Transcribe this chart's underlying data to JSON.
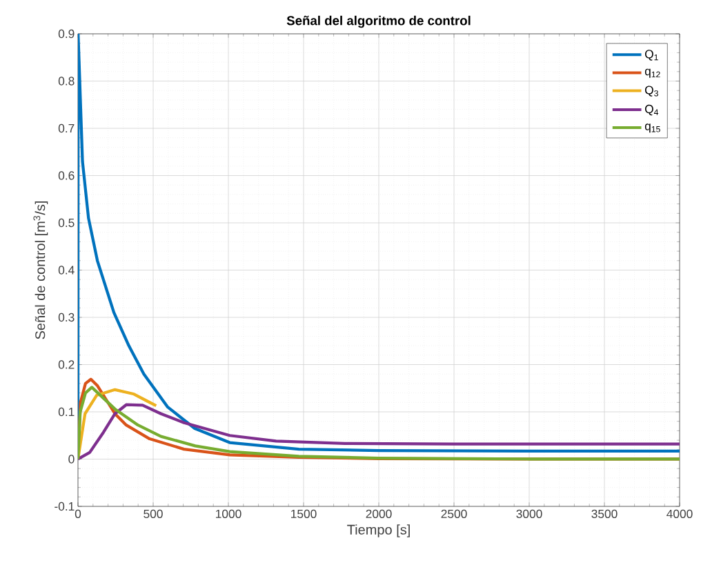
{
  "chart_data": {
    "type": "line",
    "title": "Señal del algoritmo de control",
    "xlabel": "Tiempo [s]",
    "ylabel": "Señal de control [m$^{3}$/s]",
    "xlim": [
      0,
      4000
    ],
    "ylim": [
      -0.1,
      0.9
    ],
    "xticks": [
      0,
      500,
      1000,
      1500,
      2000,
      2500,
      3000,
      3500,
      4000
    ],
    "yticks": [
      -0.1,
      0,
      0.1,
      0.2,
      0.3,
      0.4,
      0.5,
      0.6,
      0.7,
      0.8,
      0.9
    ],
    "grid": true,
    "legend": "top right",
    "line_style": "solid",
    "marker": "none",
    "series": [
      {
        "name": "Q$_{1}$",
        "color": "#0072bd",
        "x": [
          0,
          1,
          30,
          70,
          129,
          239,
          338,
          438,
          597,
          776,
          1009,
          1468,
          2000,
          3000,
          4000
        ],
        "values": [
          0,
          0.9,
          0.63,
          0.51,
          0.42,
          0.31,
          0.24,
          0.18,
          0.11,
          0.065,
          0.035,
          0.021,
          0.018,
          0.017,
          0.017
        ]
      },
      {
        "name": "q$_{12}$",
        "color": "#d95319",
        "x": [
          0,
          17,
          50,
          86,
          130,
          246,
          321,
          476,
          705,
          1009,
          1468,
          2000,
          3000,
          4000
        ],
        "values": [
          0,
          0.12,
          0.16,
          0.169,
          0.155,
          0.096,
          0.072,
          0.043,
          0.021,
          0.009,
          0.004,
          0.001,
          0,
          0
        ]
      },
      {
        "name": "Q$_{3}$",
        "color": "#edb120",
        "x": [
          0,
          47,
          124,
          246,
          368,
          459,
          520
        ],
        "values": [
          0,
          0.096,
          0.135,
          0.147,
          0.138,
          0.123,
          0.113
        ]
      },
      {
        "name": "Q$_{4}$",
        "color": "#7e2f8e",
        "x": [
          0,
          78,
          170,
          246,
          321,
          430,
          552,
          705,
          1009,
          1317,
          1775,
          2500,
          4000
        ],
        "values": [
          0,
          0.014,
          0.057,
          0.096,
          0.115,
          0.114,
          0.096,
          0.077,
          0.05,
          0.038,
          0.033,
          0.032,
          0.032
        ]
      },
      {
        "name": "q$_{15}$",
        "color": "#77ac30",
        "x": [
          0,
          15,
          50,
          92,
          246,
          399,
          552,
          780,
          1009,
          1468,
          2000,
          3000,
          4000
        ],
        "values": [
          0,
          0.1,
          0.14,
          0.152,
          0.106,
          0.072,
          0.048,
          0.028,
          0.016,
          0.006,
          0.002,
          0,
          0
        ]
      }
    ]
  }
}
